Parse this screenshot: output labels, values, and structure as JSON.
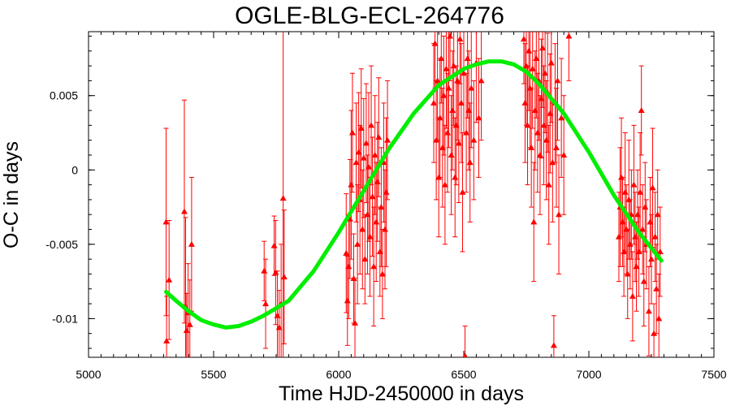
{
  "chart_data": {
    "type": "scatter",
    "title": "OGLE-BLG-ECL-264776",
    "xlabel": "Time HJD-2450000 in days",
    "ylabel": "O-C in days",
    "xlim": [
      5000,
      7500
    ],
    "ylim": [
      -0.0126,
      0.0093
    ],
    "x_ticks": [
      {
        "value": 5000,
        "label": "5000"
      },
      {
        "value": 5500,
        "label": "5500"
      },
      {
        "value": 6000,
        "label": "6000"
      },
      {
        "value": 6500,
        "label": "6500"
      },
      {
        "value": 7000,
        "label": "7000"
      },
      {
        "value": 7500,
        "label": "7500"
      }
    ],
    "y_ticks": [
      {
        "value": 0.005,
        "label": "0.005"
      },
      {
        "value": 0,
        "label": "0"
      },
      {
        "value": -0.005,
        "label": "-0.005"
      },
      {
        "value": -0.01,
        "label": "-0.01"
      }
    ],
    "grid": false,
    "legend": "none",
    "colors": {
      "points": "#ff0000",
      "fit": "#00ee00"
    },
    "fit_curve": {
      "x": [
        5310,
        5350,
        5400,
        5450,
        5500,
        5550,
        5600,
        5650,
        5700,
        5750,
        5800,
        5900,
        6000,
        6100,
        6200,
        6300,
        6400,
        6500,
        6550,
        6600,
        6650,
        6700,
        6750,
        6800,
        6900,
        7000,
        7100,
        7200,
        7290
      ],
      "y": [
        -0.0082,
        -0.0088,
        -0.0095,
        -0.0101,
        -0.0104,
        -0.0106,
        -0.0105,
        -0.0102,
        -0.0098,
        -0.0093,
        -0.0088,
        -0.0068,
        -0.0042,
        -0.0014,
        0.0014,
        0.0038,
        0.0057,
        0.0068,
        0.0071,
        0.0073,
        0.0073,
        0.0071,
        0.0066,
        0.0058,
        0.0038,
        0.0012,
        -0.0017,
        -0.0042,
        -0.0061
      ]
    },
    "points": [
      {
        "x": 5310,
        "y": -0.0035,
        "err": 0.0063
      },
      {
        "x": 5312,
        "y": -0.0115,
        "err": 0.003
      },
      {
        "x": 5322,
        "y": -0.0074,
        "err": 0.004
      },
      {
        "x": 5383,
        "y": -0.0028,
        "err": 0.0075
      },
      {
        "x": 5388,
        "y": -0.0092,
        "err": 0.006
      },
      {
        "x": 5392,
        "y": -0.0108,
        "err": 0.0025
      },
      {
        "x": 5398,
        "y": -0.0096,
        "err": 0.0033
      },
      {
        "x": 5405,
        "y": -0.0104,
        "err": 0.003
      },
      {
        "x": 5412,
        "y": -0.005,
        "err": 0.0045
      },
      {
        "x": 5702,
        "y": -0.0068,
        "err": 0.002
      },
      {
        "x": 5708,
        "y": -0.009,
        "err": 0.003
      },
      {
        "x": 5742,
        "y": -0.0051,
        "err": 0.002
      },
      {
        "x": 5748,
        "y": -0.0069,
        "err": 0.0035
      },
      {
        "x": 5755,
        "y": -0.0098,
        "err": 0.003
      },
      {
        "x": 5762,
        "y": -0.0106,
        "err": 0.0025
      },
      {
        "x": 5770,
        "y": -0.009,
        "err": 0.004
      },
      {
        "x": 5778,
        "y": -0.0019,
        "err": 0.0125
      },
      {
        "x": 5782,
        "y": -0.0072,
        "err": 0.0045
      },
      {
        "x": 6030,
        "y": -0.0056,
        "err": 0.004
      },
      {
        "x": 6035,
        "y": -0.0088,
        "err": 0.003
      },
      {
        "x": 6040,
        "y": -0.0065,
        "err": 0.0035
      },
      {
        "x": 6045,
        "y": -0.0033,
        "err": 0.004
      },
      {
        "x": 6050,
        "y": -0.001,
        "err": 0.005
      },
      {
        "x": 6055,
        "y": 0.0025,
        "err": 0.004
      },
      {
        "x": 6060,
        "y": -0.0073,
        "err": 0.003
      },
      {
        "x": 6065,
        "y": -0.0103,
        "err": 0.003
      },
      {
        "x": 6070,
        "y": 0.0005,
        "err": 0.004
      },
      {
        "x": 6075,
        "y": -0.005,
        "err": 0.004
      },
      {
        "x": 6080,
        "y": 0.0012,
        "err": 0.004
      },
      {
        "x": 6085,
        "y": -0.002,
        "err": 0.005
      },
      {
        "x": 6090,
        "y": 0.0028,
        "err": 0.004
      },
      {
        "x": 6095,
        "y": -0.004,
        "err": 0.004
      },
      {
        "x": 6100,
        "y": 0.0008,
        "err": 0.004
      },
      {
        "x": 6105,
        "y": -0.006,
        "err": 0.003
      },
      {
        "x": 6110,
        "y": 0.0018,
        "err": 0.004
      },
      {
        "x": 6115,
        "y": -0.003,
        "err": 0.004
      },
      {
        "x": 6120,
        "y": 0.0002,
        "err": 0.005
      },
      {
        "x": 6125,
        "y": -0.0045,
        "err": 0.004
      },
      {
        "x": 6130,
        "y": 0.003,
        "err": 0.004
      },
      {
        "x": 6135,
        "y": -0.0018,
        "err": 0.004
      },
      {
        "x": 6140,
        "y": -0.0065,
        "err": 0.004
      },
      {
        "x": 6145,
        "y": 0.001,
        "err": 0.004
      },
      {
        "x": 6150,
        "y": -0.0035,
        "err": 0.004
      },
      {
        "x": 6155,
        "y": -0.0008,
        "err": 0.004
      },
      {
        "x": 6160,
        "y": 0.0022,
        "err": 0.004
      },
      {
        "x": 6165,
        "y": -0.0055,
        "err": 0.003
      },
      {
        "x": 6170,
        "y": -0.0025,
        "err": 0.004
      },
      {
        "x": 6175,
        "y": -0.007,
        "err": 0.003
      },
      {
        "x": 6180,
        "y": 0.0005,
        "err": 0.004
      },
      {
        "x": 6185,
        "y": -0.004,
        "err": 0.004
      },
      {
        "x": 6190,
        "y": -0.0015,
        "err": 0.005
      },
      {
        "x": 6195,
        "y": 0.002,
        "err": 0.004
      },
      {
        "x": 6380,
        "y": 0.0045,
        "err": 0.004
      },
      {
        "x": 6385,
        "y": 0.0085,
        "err": 0.003
      },
      {
        "x": 6390,
        "y": 0.002,
        "err": 0.004
      },
      {
        "x": 6395,
        "y": 0.006,
        "err": 0.004
      },
      {
        "x": 6400,
        "y": -0.0005,
        "err": 0.004
      },
      {
        "x": 6405,
        "y": 0.0035,
        "err": 0.004
      },
      {
        "x": 6410,
        "y": 0.0075,
        "err": 0.003
      },
      {
        "x": 6415,
        "y": 0.0015,
        "err": 0.004
      },
      {
        "x": 6420,
        "y": 0.005,
        "err": 0.004
      },
      {
        "x": 6425,
        "y": -0.001,
        "err": 0.004
      },
      {
        "x": 6430,
        "y": 0.0068,
        "err": 0.004
      },
      {
        "x": 6435,
        "y": 0.0025,
        "err": 0.004
      },
      {
        "x": 6440,
        "y": 0.0055,
        "err": 0.004
      },
      {
        "x": 6445,
        "y": 0.009,
        "err": 0.003
      },
      {
        "x": 6450,
        "y": 0.001,
        "err": 0.004
      },
      {
        "x": 6455,
        "y": 0.004,
        "err": 0.004
      },
      {
        "x": 6460,
        "y": 0.007,
        "err": 0.004
      },
      {
        "x": 6465,
        "y": -0.0005,
        "err": 0.004
      },
      {
        "x": 6470,
        "y": 0.003,
        "err": 0.004
      },
      {
        "x": 6475,
        "y": 0.006,
        "err": 0.004
      },
      {
        "x": 6480,
        "y": 0.0018,
        "err": 0.004
      },
      {
        "x": 6485,
        "y": 0.0088,
        "err": 0.003
      },
      {
        "x": 6490,
        "y": 0.0045,
        "err": 0.004
      },
      {
        "x": 6495,
        "y": -0.0015,
        "err": 0.004
      },
      {
        "x": 6500,
        "y": 0.0065,
        "err": 0.004
      },
      {
        "x": 6505,
        "y": -0.0125,
        "err": 0.002
      },
      {
        "x": 6510,
        "y": 0.0025,
        "err": 0.004
      },
      {
        "x": 6515,
        "y": 0.0075,
        "err": 0.004
      },
      {
        "x": 6520,
        "y": 0.004,
        "err": 0.004
      },
      {
        "x": 6525,
        "y": 0.0005,
        "err": 0.004
      },
      {
        "x": 6530,
        "y": 0.0055,
        "err": 0.004
      },
      {
        "x": 6540,
        "y": 0.002,
        "err": 0.004
      },
      {
        "x": 6550,
        "y": 0.0072,
        "err": 0.004
      },
      {
        "x": 6560,
        "y": 0.0035,
        "err": 0.004
      },
      {
        "x": 6570,
        "y": 0.006,
        "err": 0.004
      },
      {
        "x": 6740,
        "y": 0.0088,
        "err": 0.003
      },
      {
        "x": 6745,
        "y": 0.0045,
        "err": 0.004
      },
      {
        "x": 6750,
        "y": 0.007,
        "err": 0.004
      },
      {
        "x": 6755,
        "y": 0.003,
        "err": 0.004
      },
      {
        "x": 6760,
        "y": 0.008,
        "err": 0.004
      },
      {
        "x": 6765,
        "y": 0.0055,
        "err": 0.004
      },
      {
        "x": 6770,
        "y": 0.0015,
        "err": 0.004
      },
      {
        "x": 6775,
        "y": 0.0068,
        "err": 0.004
      },
      {
        "x": 6780,
        "y": -0.0035,
        "err": 0.004
      },
      {
        "x": 6785,
        "y": 0.004,
        "err": 0.004
      },
      {
        "x": 6790,
        "y": 0.0075,
        "err": 0.004
      },
      {
        "x": 6795,
        "y": 0.0025,
        "err": 0.004
      },
      {
        "x": 6800,
        "y": 0.006,
        "err": 0.004
      },
      {
        "x": 6805,
        "y": 0.001,
        "err": 0.004
      },
      {
        "x": 6810,
        "y": 0.0048,
        "err": 0.004
      },
      {
        "x": 6815,
        "y": 0.0082,
        "err": 0.004
      },
      {
        "x": 6820,
        "y": 0.003,
        "err": 0.004
      },
      {
        "x": 6825,
        "y": 0.0065,
        "err": 0.004
      },
      {
        "x": 6830,
        "y": 0.002,
        "err": 0.004
      },
      {
        "x": 6835,
        "y": 0.0052,
        "err": 0.004
      },
      {
        "x": 6840,
        "y": -0.001,
        "err": 0.004
      },
      {
        "x": 6845,
        "y": 0.0038,
        "err": 0.004
      },
      {
        "x": 6850,
        "y": 0.0072,
        "err": 0.004
      },
      {
        "x": 6855,
        "y": 0.0005,
        "err": 0.004
      },
      {
        "x": 6860,
        "y": -0.0118,
        "err": 0.002
      },
      {
        "x": 6865,
        "y": 0.0045,
        "err": 0.004
      },
      {
        "x": 6870,
        "y": 0.0015,
        "err": 0.004
      },
      {
        "x": 6875,
        "y": 0.006,
        "err": 0.004
      },
      {
        "x": 6880,
        "y": -0.003,
        "err": 0.004
      },
      {
        "x": 6890,
        "y": 0.0035,
        "err": 0.004
      },
      {
        "x": 6900,
        "y": 0.001,
        "err": 0.004
      },
      {
        "x": 6920,
        "y": 0.009,
        "err": 0.003
      },
      {
        "x": 7120,
        "y": -0.0045,
        "err": 0.003
      },
      {
        "x": 7125,
        "y": -0.0025,
        "err": 0.004
      },
      {
        "x": 7130,
        "y": -0.0005,
        "err": 0.004
      },
      {
        "x": 7135,
        "y": -0.0035,
        "err": 0.003
      },
      {
        "x": 7140,
        "y": -0.0055,
        "err": 0.003
      },
      {
        "x": 7145,
        "y": -0.0015,
        "err": 0.004
      },
      {
        "x": 7150,
        "y": -0.004,
        "err": 0.003
      },
      {
        "x": 7155,
        "y": -0.007,
        "err": 0.003
      },
      {
        "x": 7160,
        "y": -0.002,
        "err": 0.004
      },
      {
        "x": 7165,
        "y": -0.005,
        "err": 0.003
      },
      {
        "x": 7170,
        "y": -0.003,
        "err": 0.003
      },
      {
        "x": 7175,
        "y": -0.0085,
        "err": 0.003
      },
      {
        "x": 7180,
        "y": -0.001,
        "err": 0.004
      },
      {
        "x": 7185,
        "y": -0.0045,
        "err": 0.003
      },
      {
        "x": 7190,
        "y": -0.0065,
        "err": 0.003
      },
      {
        "x": 7195,
        "y": -0.003,
        "err": 0.003
      },
      {
        "x": 7200,
        "y": -0.0055,
        "err": 0.003
      },
      {
        "x": 7205,
        "y": -0.0015,
        "err": 0.004
      },
      {
        "x": 7210,
        "y": 0.004,
        "err": 0.003
      },
      {
        "x": 7215,
        "y": -0.004,
        "err": 0.003
      },
      {
        "x": 7220,
        "y": -0.0075,
        "err": 0.003
      },
      {
        "x": 7225,
        "y": -0.0025,
        "err": 0.003
      },
      {
        "x": 7230,
        "y": -0.005,
        "err": 0.003
      },
      {
        "x": 7240,
        "y": -0.0095,
        "err": 0.003
      },
      {
        "x": 7245,
        "y": -0.0035,
        "err": 0.003
      },
      {
        "x": 7250,
        "y": -0.006,
        "err": 0.003
      },
      {
        "x": 7255,
        "y": -0.0012,
        "err": 0.004
      },
      {
        "x": 7260,
        "y": -0.011,
        "err": 0.002
      },
      {
        "x": 7265,
        "y": -0.0045,
        "err": 0.003
      },
      {
        "x": 7270,
        "y": -0.008,
        "err": 0.003
      },
      {
        "x": 7275,
        "y": -0.003,
        "err": 0.003
      },
      {
        "x": 7280,
        "y": -0.01,
        "err": 0.003
      },
      {
        "x": 7285,
        "y": -0.0055,
        "err": 0.003
      }
    ]
  }
}
